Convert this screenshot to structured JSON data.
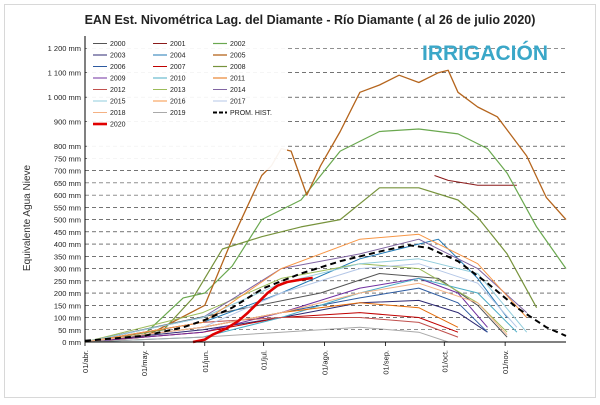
{
  "chart_data": {
    "type": "line",
    "title": "EAN Est. Nivométrica Lag. del Diamante - Río Diamante  ( al 26 de julio 2020)",
    "ylabel": "Equivalente Agua Nieve",
    "xlabel": "",
    "ylim": [
      0,
      1250
    ],
    "y_ticks": [
      "0 mm",
      "50 mm",
      "100 mm",
      "150 mm",
      "200 mm",
      "250 mm",
      "300 mm",
      "350 mm",
      "400 mm",
      "450 mm",
      "500 mm",
      "550 mm",
      "600 mm",
      "650 mm",
      "700 mm",
      "750 mm",
      "800 mm",
      "900 mm",
      "1 000 mm",
      "1 100 mm",
      "1 200 mm"
    ],
    "y_tick_values": [
      0,
      50,
      100,
      150,
      200,
      250,
      300,
      350,
      400,
      450,
      500,
      550,
      600,
      650,
      700,
      750,
      800,
      900,
      1000,
      1100,
      1200
    ],
    "x_ticks": [
      "01/abr.",
      "01/may.",
      "01/jun.",
      "01/jul.",
      "01/ago.",
      "01/sep.",
      "01/oct.",
      "01/nov."
    ],
    "x_tick_days": [
      0,
      30,
      61,
      91,
      122,
      153,
      183,
      214
    ],
    "x_range_days": [
      0,
      245
    ],
    "x_origin": "01/abr.",
    "grid": "horizontal dashed",
    "legend_position": "top-left",
    "logo_text": "IRRIGACIÓN",
    "series": [
      {
        "name": "2000",
        "color": "#555555",
        "width": 1,
        "points": [
          [
            0,
            0
          ],
          [
            70,
            120
          ],
          [
            120,
            200
          ],
          [
            150,
            280
          ],
          [
            180,
            260
          ],
          [
            200,
            150
          ],
          [
            215,
            20
          ]
        ]
      },
      {
        "name": "2001",
        "color": "#8b1a1a",
        "width": 1,
        "points": [
          [
            178,
            680
          ],
          [
            185,
            660
          ],
          [
            200,
            640
          ],
          [
            210,
            640
          ],
          [
            220,
            640
          ]
        ]
      },
      {
        "name": "2002",
        "color": "#6aa84f",
        "width": 1.2,
        "points": [
          [
            0,
            0
          ],
          [
            30,
            30
          ],
          [
            50,
            180
          ],
          [
            61,
            200
          ],
          [
            75,
            310
          ],
          [
            90,
            500
          ],
          [
            110,
            580
          ],
          [
            130,
            780
          ],
          [
            150,
            860
          ],
          [
            170,
            870
          ],
          [
            190,
            850
          ],
          [
            205,
            790
          ],
          [
            215,
            690
          ],
          [
            230,
            470
          ],
          [
            245,
            300
          ]
        ]
      },
      {
        "name": "2003",
        "color": "#2e2a73",
        "width": 1,
        "points": [
          [
            0,
            0
          ],
          [
            60,
            50
          ],
          [
            100,
            100
          ],
          [
            140,
            160
          ],
          [
            170,
            170
          ],
          [
            190,
            120
          ],
          [
            205,
            40
          ]
        ]
      },
      {
        "name": "2004",
        "color": "#1f78b4",
        "width": 1,
        "points": [
          [
            0,
            0
          ],
          [
            60,
            80
          ],
          [
            100,
            200
          ],
          [
            140,
            340
          ],
          [
            160,
            380
          ],
          [
            180,
            420
          ],
          [
            200,
            260
          ],
          [
            215,
            100
          ]
        ]
      },
      {
        "name": "2005",
        "color": "#b5651d",
        "width": 1.3,
        "points": [
          [
            0,
            0
          ],
          [
            30,
            20
          ],
          [
            61,
            150
          ],
          [
            75,
            420
          ],
          [
            90,
            680
          ],
          [
            95,
            720
          ],
          [
            100,
            790
          ],
          [
            105,
            780
          ],
          [
            113,
            600
          ],
          [
            120,
            720
          ],
          [
            130,
            860
          ],
          [
            140,
            1020
          ],
          [
            150,
            1050
          ],
          [
            160,
            1090
          ],
          [
            170,
            1060
          ],
          [
            180,
            1100
          ],
          [
            185,
            1110
          ],
          [
            190,
            1020
          ],
          [
            200,
            960
          ],
          [
            210,
            920
          ],
          [
            225,
            760
          ],
          [
            235,
            590
          ],
          [
            245,
            500
          ]
        ]
      },
      {
        "name": "2006",
        "color": "#2c5aa0",
        "width": 1,
        "points": [
          [
            0,
            0
          ],
          [
            60,
            60
          ],
          [
            100,
            120
          ],
          [
            140,
            180
          ],
          [
            170,
            220
          ],
          [
            190,
            160
          ],
          [
            205,
            40
          ]
        ]
      },
      {
        "name": "2007",
        "color": "#c00000",
        "width": 1,
        "points": [
          [
            0,
            0
          ],
          [
            60,
            40
          ],
          [
            100,
            100
          ],
          [
            140,
            120
          ],
          [
            170,
            100
          ],
          [
            190,
            40
          ]
        ]
      },
      {
        "name": "2008",
        "color": "#77933c",
        "width": 1.2,
        "points": [
          [
            0,
            0
          ],
          [
            40,
            50
          ],
          [
            55,
            180
          ],
          [
            70,
            380
          ],
          [
            90,
            430
          ],
          [
            110,
            470
          ],
          [
            130,
            500
          ],
          [
            150,
            630
          ],
          [
            170,
            630
          ],
          [
            190,
            580
          ],
          [
            200,
            510
          ],
          [
            215,
            360
          ],
          [
            230,
            140
          ]
        ]
      },
      {
        "name": "2009",
        "color": "#7030a0",
        "width": 1,
        "points": [
          [
            0,
            0
          ],
          [
            60,
            40
          ],
          [
            100,
            120
          ],
          [
            140,
            220
          ],
          [
            170,
            260
          ],
          [
            190,
            200
          ],
          [
            205,
            60
          ]
        ]
      },
      {
        "name": "2010",
        "color": "#4bacc6",
        "width": 1,
        "points": [
          [
            0,
            0
          ],
          [
            60,
            20
          ],
          [
            100,
            100
          ],
          [
            140,
            200
          ],
          [
            170,
            260
          ],
          [
            200,
            200
          ],
          [
            220,
            40
          ]
        ]
      },
      {
        "name": "2011",
        "color": "#e46c0a",
        "width": 1,
        "points": [
          [
            0,
            0
          ],
          [
            60,
            60
          ],
          [
            100,
            120
          ],
          [
            140,
            160
          ],
          [
            170,
            140
          ],
          [
            190,
            60
          ]
        ]
      },
      {
        "name": "2012",
        "color": "#c0504d",
        "width": 1,
        "points": [
          [
            0,
            0
          ],
          [
            60,
            80
          ],
          [
            100,
            100
          ],
          [
            140,
            100
          ],
          [
            170,
            80
          ],
          [
            190,
            20
          ]
        ]
      },
      {
        "name": "2013",
        "color": "#9bbb59",
        "width": 1,
        "points": [
          [
            0,
            0
          ],
          [
            60,
            120
          ],
          [
            100,
            260
          ],
          [
            140,
            320
          ],
          [
            170,
            300
          ],
          [
            200,
            160
          ],
          [
            215,
            40
          ]
        ]
      },
      {
        "name": "2014",
        "color": "#8064a2",
        "width": 1,
        "points": [
          [
            0,
            0
          ],
          [
            60,
            100
          ],
          [
            100,
            300
          ],
          [
            140,
            360
          ],
          [
            170,
            420
          ],
          [
            200,
            300
          ],
          [
            225,
            120
          ]
        ]
      },
      {
        "name": "2015",
        "color": "#92cddc",
        "width": 1,
        "points": [
          [
            0,
            0
          ],
          [
            60,
            100
          ],
          [
            100,
            240
          ],
          [
            140,
            320
          ],
          [
            170,
            340
          ],
          [
            200,
            280
          ],
          [
            225,
            40
          ]
        ]
      },
      {
        "name": "2016",
        "color": "#f79646",
        "width": 1,
        "points": [
          [
            0,
            0
          ],
          [
            60,
            80
          ],
          [
            100,
            300
          ],
          [
            140,
            420
          ],
          [
            170,
            440
          ],
          [
            200,
            320
          ],
          [
            225,
            100
          ]
        ]
      },
      {
        "name": "2017",
        "color": "#b4c7e7",
        "width": 1,
        "points": [
          [
            0,
            0
          ],
          [
            60,
            60
          ],
          [
            100,
            200
          ],
          [
            140,
            300
          ],
          [
            170,
            320
          ],
          [
            200,
            240
          ],
          [
            220,
            60
          ]
        ]
      },
      {
        "name": "2018",
        "color": "#f4b183",
        "width": 1,
        "points": [
          [
            0,
            0
          ],
          [
            60,
            60
          ],
          [
            100,
            120
          ],
          [
            140,
            200
          ],
          [
            170,
            240
          ],
          [
            200,
            160
          ],
          [
            215,
            30
          ]
        ]
      },
      {
        "name": "2019",
        "color": "#a9a9a9",
        "width": 1,
        "points": [
          [
            0,
            0
          ],
          [
            60,
            20
          ],
          [
            100,
            40
          ],
          [
            140,
            60
          ],
          [
            170,
            40
          ],
          [
            185,
            0
          ]
        ]
      },
      {
        "name": "PROM. HIST.",
        "color": "#000000",
        "width": 2,
        "dash": "6 4",
        "points": [
          [
            0,
            5
          ],
          [
            30,
            25
          ],
          [
            50,
            60
          ],
          [
            61,
            90
          ],
          [
            75,
            140
          ],
          [
            91,
            220
          ],
          [
            110,
            280
          ],
          [
            130,
            330
          ],
          [
            153,
            375
          ],
          [
            165,
            395
          ],
          [
            175,
            385
          ],
          [
            190,
            330
          ],
          [
            205,
            240
          ],
          [
            220,
            140
          ],
          [
            235,
            60
          ],
          [
            245,
            25
          ]
        ]
      },
      {
        "name": "2020",
        "color": "#e00000",
        "width": 2.6,
        "points": [
          [
            55,
            0
          ],
          [
            61,
            10
          ],
          [
            65,
            30
          ],
          [
            72,
            55
          ],
          [
            78,
            85
          ],
          [
            83,
            120
          ],
          [
            88,
            160
          ],
          [
            93,
            200
          ],
          [
            98,
            230
          ],
          [
            103,
            245
          ],
          [
            110,
            255
          ],
          [
            116,
            262
          ]
        ]
      }
    ]
  }
}
